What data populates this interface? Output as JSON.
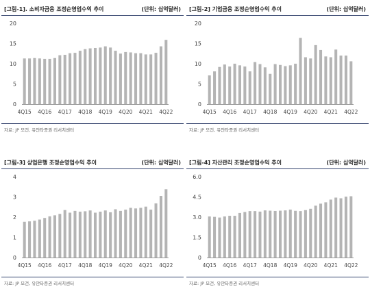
{
  "source_note": "자료: JP 모건, 유안타증권 리서치센터",
  "panels": [
    {
      "title": "[그림-1]. 소비자금융 조정순영업수익 추이",
      "unit": "(단위: 십억달러)"
    },
    {
      "title": "[그림-2] 기업금융 조정순영업수익 추이",
      "unit": "(단위: 십억달러)"
    },
    {
      "title": "[그림-3] 상업은행 조정순영업수익 추이",
      "unit": "(단위: 십억달러)"
    },
    {
      "title": "[그림-4] 자산관리 조정순영업수익 추이",
      "unit": "(단위: 십억달러)"
    }
  ],
  "colors": {
    "bar": "#b4b4b4",
    "axis": "#999999",
    "header_rule": "#2f3f6a"
  },
  "chart_data": [
    {
      "type": "bar",
      "title": "[그림-1]. 소비자금융 조정순영업수익 추이",
      "categories": [
        "4Q15",
        "1Q16",
        "2Q16",
        "3Q16",
        "4Q16",
        "1Q17",
        "2Q17",
        "3Q17",
        "4Q17",
        "1Q18",
        "2Q18",
        "3Q18",
        "4Q18",
        "1Q19",
        "2Q19",
        "3Q19",
        "4Q19",
        "1Q20",
        "2Q20",
        "3Q20",
        "4Q20",
        "1Q21",
        "2Q21",
        "3Q21",
        "4Q21",
        "1Q22",
        "2Q22",
        "3Q22",
        "4Q22"
      ],
      "tick_labels": [
        "4Q15",
        "4Q16",
        "4Q17",
        "4Q18",
        "4Q19",
        "4Q20",
        "4Q21",
        "4Q22"
      ],
      "values": [
        11.3,
        11.3,
        11.4,
        11.3,
        11.2,
        11.2,
        11.4,
        12.1,
        12.2,
        12.6,
        12.7,
        13.2,
        13.6,
        13.8,
        13.9,
        14.0,
        14.3,
        14.0,
        13.2,
        12.5,
        12.9,
        12.8,
        12.6,
        12.6,
        12.3,
        12.3,
        12.7,
        14.3,
        15.9
      ],
      "ylim": [
        0,
        20
      ],
      "yticks": [
        0,
        5,
        10,
        15,
        20
      ]
    },
    {
      "type": "bar",
      "title": "[그림-2] 기업금융 조정순영업수익 추이",
      "categories": [
        "4Q15",
        "1Q16",
        "2Q16",
        "3Q16",
        "4Q16",
        "1Q17",
        "2Q17",
        "3Q17",
        "4Q17",
        "1Q18",
        "2Q18",
        "3Q18",
        "4Q18",
        "1Q19",
        "2Q19",
        "3Q19",
        "4Q19",
        "1Q20",
        "2Q20",
        "3Q20",
        "4Q20",
        "1Q21",
        "2Q21",
        "3Q21",
        "4Q21",
        "1Q22",
        "2Q22",
        "3Q22",
        "4Q22"
      ],
      "tick_labels": [
        "4Q15",
        "4Q16",
        "4Q17",
        "4Q18",
        "4Q19",
        "4Q20",
        "4Q21",
        "4Q22"
      ],
      "values": [
        7.1,
        8.1,
        9.2,
        9.8,
        9.3,
        10.0,
        9.6,
        9.3,
        8.1,
        10.4,
        9.9,
        9.1,
        7.5,
        9.9,
        9.7,
        9.4,
        9.6,
        10.0,
        16.4,
        11.6,
        11.3,
        14.6,
        13.4,
        11.8,
        11.6,
        13.5,
        12.0,
        12.0,
        10.6
      ],
      "ylim": [
        0,
        20
      ],
      "yticks": [
        0,
        5,
        10,
        15,
        20
      ]
    },
    {
      "type": "bar",
      "title": "[그림-3] 상업은행 조정순영업수익 추이",
      "categories": [
        "4Q15",
        "1Q16",
        "2Q16",
        "3Q16",
        "4Q16",
        "1Q17",
        "2Q17",
        "3Q17",
        "4Q17",
        "1Q18",
        "2Q18",
        "3Q18",
        "4Q18",
        "1Q19",
        "2Q19",
        "3Q19",
        "4Q19",
        "1Q20",
        "2Q20",
        "3Q20",
        "4Q20",
        "1Q21",
        "2Q21",
        "3Q21",
        "4Q21",
        "1Q22",
        "2Q22",
        "3Q22",
        "4Q22"
      ],
      "tick_labels": [
        "4Q15",
        "4Q16",
        "4Q17",
        "4Q18",
        "4Q19",
        "4Q20",
        "4Q21",
        "4Q22"
      ],
      "values": [
        1.77,
        1.79,
        1.82,
        1.88,
        1.96,
        2.04,
        2.09,
        2.16,
        2.35,
        2.22,
        2.31,
        2.27,
        2.29,
        2.33,
        2.22,
        2.27,
        2.33,
        2.24,
        2.39,
        2.31,
        2.37,
        2.46,
        2.43,
        2.46,
        2.52,
        2.37,
        2.68,
        3.05,
        3.38
      ],
      "ylim": [
        0,
        4
      ],
      "yticks": [
        0,
        1,
        2,
        3,
        4
      ]
    },
    {
      "type": "bar",
      "title": "[그림-4] 자산관리 조정순영업수익 추이",
      "categories": [
        "4Q15",
        "1Q16",
        "2Q16",
        "3Q16",
        "4Q16",
        "1Q17",
        "2Q17",
        "3Q17",
        "4Q17",
        "1Q18",
        "2Q18",
        "3Q18",
        "4Q18",
        "1Q19",
        "2Q19",
        "3Q19",
        "4Q19",
        "1Q20",
        "2Q20",
        "3Q20",
        "4Q20",
        "1Q21",
        "2Q21",
        "3Q21",
        "4Q21",
        "1Q22",
        "2Q22",
        "3Q22",
        "4Q22"
      ],
      "tick_labels": [
        "4Q15",
        "4Q16",
        "4Q17",
        "4Q18",
        "4Q19",
        "4Q20",
        "4Q21",
        "4Q22"
      ],
      "values": [
        3.05,
        3.02,
        2.97,
        3.05,
        3.1,
        3.1,
        3.31,
        3.38,
        3.45,
        3.45,
        3.41,
        3.5,
        3.48,
        3.46,
        3.48,
        3.5,
        3.56,
        3.47,
        3.45,
        3.52,
        3.62,
        3.85,
        4.0,
        4.1,
        4.3,
        4.45,
        4.4,
        4.52,
        4.55
      ],
      "ylim": [
        0,
        6
      ],
      "yticks": [
        0,
        1.5,
        3.0,
        4.5,
        6.0
      ],
      "ytick_labels": [
        "0",
        "1.5",
        "3.0",
        "4.5",
        "6.0"
      ]
    }
  ]
}
